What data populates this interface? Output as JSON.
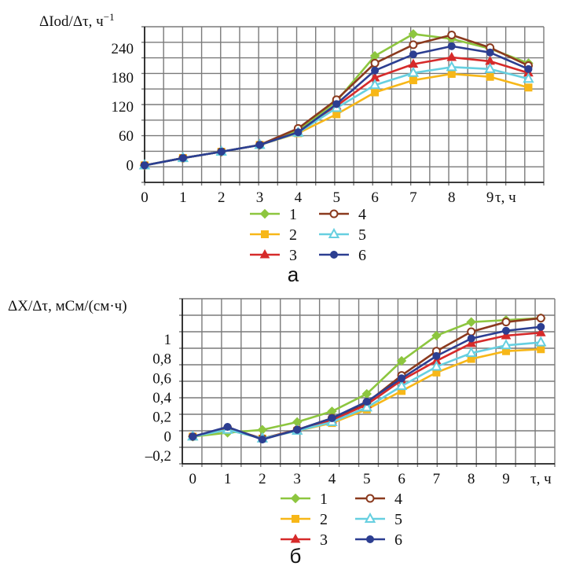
{
  "chart_data": [
    {
      "type": "line",
      "panel_label": "а",
      "ylabel": "ΔIod/Δτ, ч",
      "ylabel_sup": "−1",
      "xlabel": "τ, ч",
      "x": [
        0,
        1,
        2,
        3,
        4,
        5,
        6,
        7,
        8,
        9,
        10
      ],
      "x_ticks": [
        "0",
        "1",
        "2",
        "3",
        "4",
        "5",
        "6",
        "7",
        "8",
        "9"
      ],
      "y_ticks": [
        "0",
        "60",
        "120",
        "180",
        "240"
      ],
      "y_tick_values": [
        0,
        60,
        120,
        180,
        240
      ],
      "xlim": [
        0,
        10.4
      ],
      "ylim": [
        -35,
        285
      ],
      "grid": true,
      "legend_position": "bottom",
      "series": [
        {
          "name": "1",
          "color": "#8dc63f",
          "marker": "diamond",
          "values": [
            0,
            15,
            28,
            42,
            72,
            132,
            225,
            270,
            260,
            240,
            210
          ]
        },
        {
          "name": "2",
          "color": "#f7b718",
          "marker": "square",
          "values": [
            0,
            15,
            28,
            42,
            66,
            105,
            150,
            175,
            188,
            182,
            160
          ]
        },
        {
          "name": "3",
          "color": "#d62a2a",
          "marker": "triangle",
          "values": [
            0,
            15,
            28,
            42,
            68,
            122,
            180,
            208,
            222,
            214,
            190
          ]
        },
        {
          "name": "4",
          "color": "#8b3a1e",
          "marker": "circle-open",
          "values": [
            0,
            15,
            28,
            42,
            76,
            135,
            210,
            248,
            268,
            242,
            205
          ]
        },
        {
          "name": "5",
          "color": "#66cfe0",
          "marker": "triangle-open",
          "values": [
            0,
            15,
            28,
            42,
            67,
            118,
            165,
            190,
            202,
            198,
            178
          ]
        },
        {
          "name": "6",
          "color": "#2c3e91",
          "marker": "circle",
          "values": [
            0,
            15,
            28,
            42,
            68,
            126,
            195,
            228,
            245,
            232,
            198
          ]
        }
      ]
    },
    {
      "type": "line",
      "panel_label": "б",
      "ylabel": "ΔX/Δτ, мСм/(см·ч)",
      "xlabel": "τ, ч",
      "x": [
        0,
        1,
        2,
        3,
        4,
        5,
        6,
        7,
        8,
        9,
        10
      ],
      "x_ticks": [
        "0",
        "1",
        "2",
        "3",
        "4",
        "5",
        "6",
        "7",
        "8",
        "9"
      ],
      "y_ticks": [
        "–0,2",
        "0",
        "0,2",
        "0,4",
        "0,6",
        "0,8",
        "1"
      ],
      "y_tick_values": [
        -0.2,
        0,
        0.2,
        0.4,
        0.6,
        0.8,
        1.0
      ],
      "xlim": [
        -0.3,
        10.4
      ],
      "ylim": [
        -0.28,
        1.42
      ],
      "grid": true,
      "legend_position": "bottom",
      "series": [
        {
          "name": "1",
          "color": "#8dc63f",
          "marker": "diamond",
          "values": [
            0,
            0.04,
            0.07,
            0.15,
            0.26,
            0.44,
            0.78,
            1.04,
            1.18,
            1.2,
            1.22
          ]
        },
        {
          "name": "2",
          "color": "#f7b718",
          "marker": "square",
          "values": [
            0,
            0.07,
            -0.02,
            0.06,
            0.14,
            0.28,
            0.47,
            0.66,
            0.8,
            0.88,
            0.9
          ]
        },
        {
          "name": "3",
          "color": "#d62a2a",
          "marker": "triangle",
          "values": [
            0,
            0.08,
            -0.02,
            0.07,
            0.17,
            0.33,
            0.58,
            0.78,
            0.96,
            1.04,
            1.07
          ]
        },
        {
          "name": "4",
          "color": "#8b3a1e",
          "marker": "circle-open",
          "values": [
            0,
            0.09,
            -0.02,
            0.07,
            0.19,
            0.35,
            0.63,
            0.88,
            1.08,
            1.18,
            1.22
          ]
        },
        {
          "name": "5",
          "color": "#66cfe0",
          "marker": "triangle-open",
          "values": [
            0,
            0.07,
            -0.02,
            0.06,
            0.15,
            0.3,
            0.52,
            0.72,
            0.86,
            0.94,
            0.97
          ]
        },
        {
          "name": "6",
          "color": "#2c3e91",
          "marker": "circle",
          "values": [
            0,
            0.1,
            -0.03,
            0.07,
            0.19,
            0.36,
            0.6,
            0.83,
            1.01,
            1.09,
            1.13
          ]
        }
      ]
    }
  ]
}
